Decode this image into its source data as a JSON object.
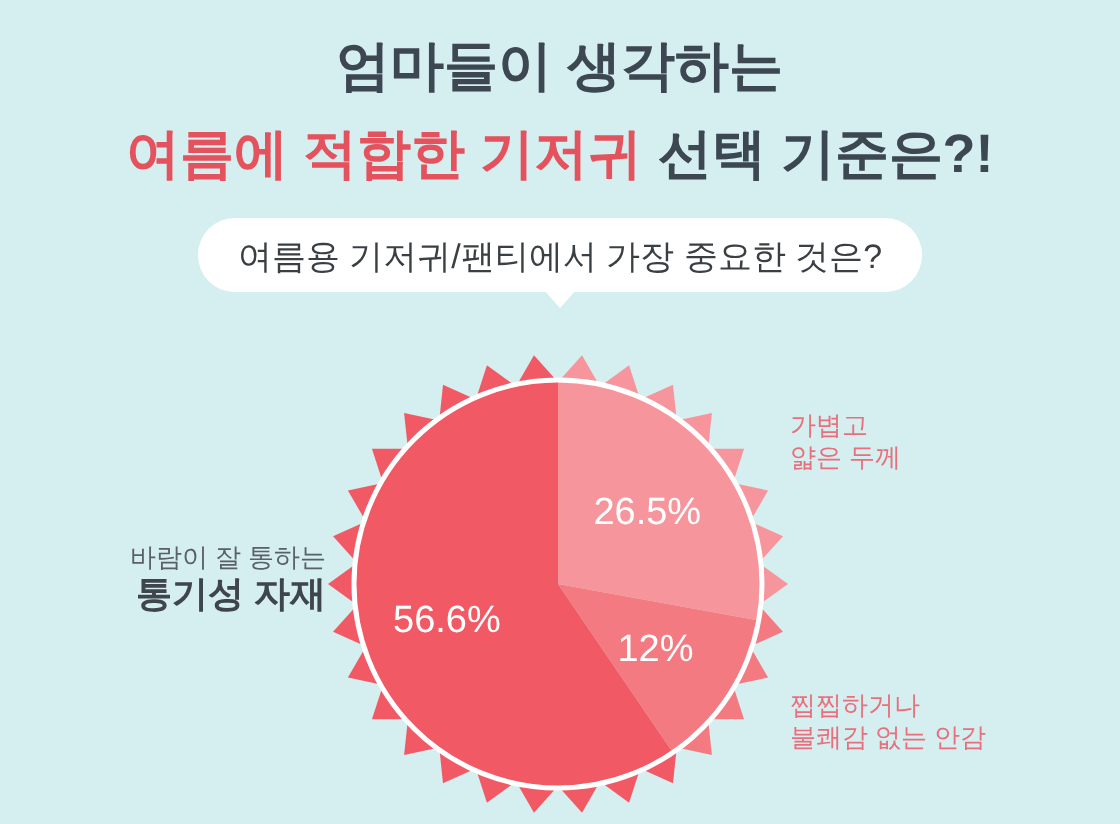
{
  "chart_data": {
    "type": "pie",
    "title": "엄마들이 생각하는\n여름에 적합한 기저귀 선택 기준은?!",
    "subtitle": "여름용 기저귀/팬티에서 가장 중요한 것은?",
    "categories": [
      "가볍고\n얇은 두께",
      "찝찝하거나\n불쾌감 없는 안감",
      "바람이 잘 통하는\n통기성 자재"
    ],
    "values": [
      26.5,
      12,
      56.6
    ],
    "colors": [
      "#f7959c",
      "#f47a82",
      "#f15a64"
    ],
    "value_labels": [
      "26.5%",
      "12%",
      "56.6%"
    ]
  }
}
